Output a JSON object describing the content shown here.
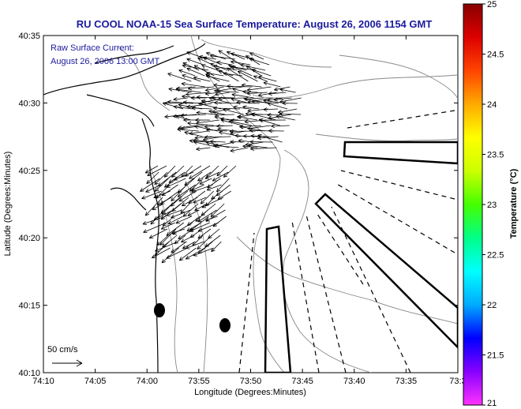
{
  "title": "RU COOL  NOAA-15  Sea Surface Temperature:  August 26, 2006 1154 GMT",
  "annotation": {
    "line1": "Raw Surface Current:",
    "line2": "August 26, 2006 13:00 GMT"
  },
  "scale_label": "50 cm/s",
  "axes": {
    "xlabel": "Longitude (Degrees:Minutes)",
    "ylabel": "Latitude (Degrees:Minutes)",
    "x_ticks": [
      "74:10",
      "74:05",
      "74:00",
      "73:55",
      "73:50",
      "73:45",
      "73:40",
      "73:35",
      "73:3"
    ],
    "y_ticks": [
      "40:35",
      "40:30",
      "40:25",
      "40:20",
      "40:15",
      "40:10"
    ]
  },
  "colorbar": {
    "label": "Temperature (°C)",
    "ticks": [
      "25",
      "24.5",
      "24",
      "23.5",
      "23",
      "22.5",
      "22",
      "21.5",
      "21"
    ],
    "range": [
      21,
      25
    ],
    "colors": [
      "#ff33ff",
      "#8800ff",
      "#0000ff",
      "#00aaff",
      "#00ffff",
      "#00ff88",
      "#44ff00",
      "#ccff00",
      "#ffff00",
      "#ffaa00",
      "#ff4400",
      "#dd0000",
      "#880000"
    ]
  },
  "chart_data": {
    "type": "map",
    "title": "RU COOL  NOAA-15  Sea Surface Temperature:  August 26, 2006 1154 GMT",
    "xlabel": "Longitude (Degrees:Minutes)",
    "ylabel": "Latitude (Degrees:Minutes)",
    "xlim": [
      "74:10",
      "73:30"
    ],
    "ylim": [
      "40:10",
      "40:35"
    ],
    "colorbar_range": [
      21,
      25
    ],
    "colorbar_unit": "°C",
    "vector_scale": "50 cm/s"
  }
}
